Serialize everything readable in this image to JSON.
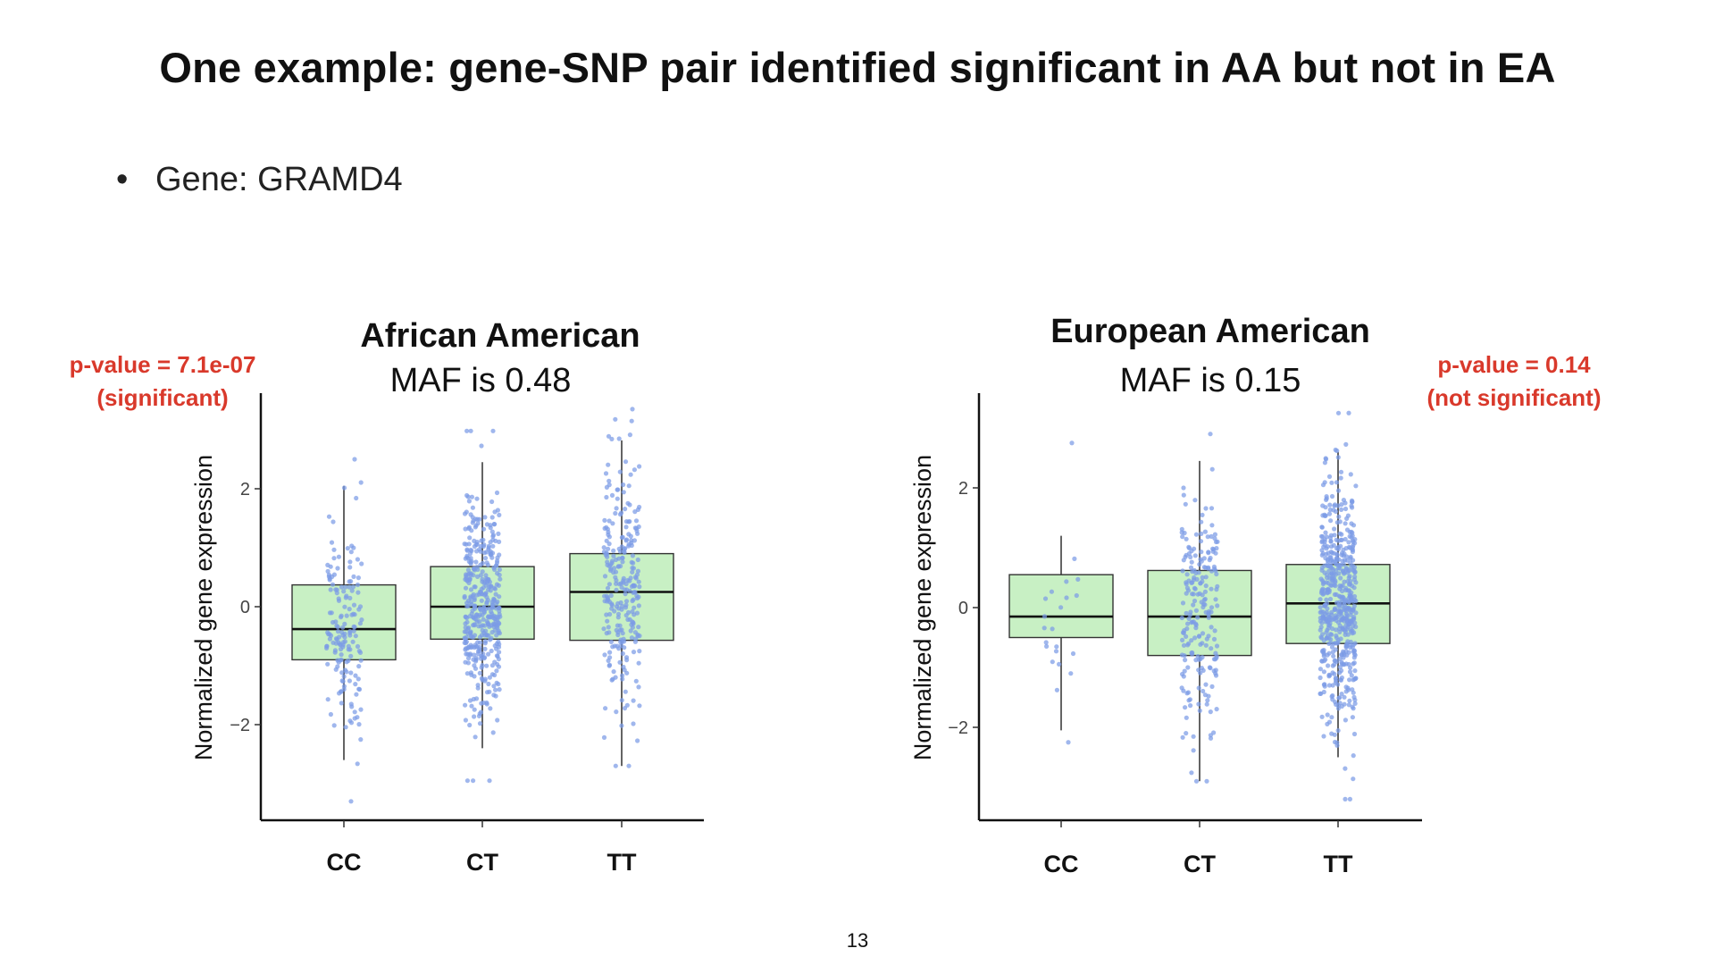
{
  "slide": {
    "title": "One example: gene-SNP pair identified significant in AA but not in EA",
    "bullet_marker": "•",
    "bullet": "Gene: GRAMD4",
    "page_number": "13"
  },
  "annotations": {
    "aa_pvalue": "p-value = 7.1e-07",
    "aa_note": "(significant)",
    "ea_pvalue": "p-value = 0.14",
    "ea_note": "(not significant)",
    "color": "#d9392b"
  },
  "chart_data": [
    {
      "type": "boxplot",
      "title": "African American",
      "subtitle": "MAF is 0.48",
      "ylabel": "Normalized gene expression",
      "xlabel": "",
      "ylim": [
        -3.6,
        3.6
      ],
      "yticks": [
        2,
        0,
        -2
      ],
      "ytick_labels": [
        "2",
        "0",
        "−2"
      ],
      "categories": [
        "CC",
        "CT",
        "TT"
      ],
      "box_fill": "#c8f0c4",
      "point_color": "#7b9be6",
      "boxes": [
        {
          "category": "CC",
          "whisker_low": -2.6,
          "q1": -0.9,
          "median": -0.38,
          "q3": 0.37,
          "whisker_high": 2.05,
          "n_points": 160,
          "min_point": -3.3,
          "max_point": 2.5
        },
        {
          "category": "CT",
          "whisker_low": -2.4,
          "q1": -0.55,
          "median": 0.0,
          "q3": 0.68,
          "whisker_high": 2.45,
          "n_points": 420,
          "min_point": -2.95,
          "max_point": 2.98
        },
        {
          "category": "TT",
          "whisker_low": -2.7,
          "q1": -0.57,
          "median": 0.25,
          "q3": 0.9,
          "whisker_high": 2.82,
          "n_points": 260,
          "min_point": -2.7,
          "max_point": 3.35
        }
      ]
    },
    {
      "type": "boxplot",
      "title": "European American",
      "subtitle": "MAF is 0.15",
      "ylabel": "Normalized gene expression",
      "xlabel": "",
      "ylim": [
        -3.6,
        3.6
      ],
      "yticks": [
        2,
        0,
        -2
      ],
      "ytick_labels": [
        "2",
        "0",
        "−2"
      ],
      "categories": [
        "CC",
        "CT",
        "TT"
      ],
      "box_fill": "#c8f0c4",
      "point_color": "#7b9be6",
      "boxes": [
        {
          "category": "CC",
          "whisker_low": -2.05,
          "q1": -0.5,
          "median": -0.15,
          "q3": 0.55,
          "whisker_high": 1.2,
          "n_points": 20,
          "min_point": -2.25,
          "max_point": 2.75
        },
        {
          "category": "CT",
          "whisker_low": -2.9,
          "q1": -0.8,
          "median": -0.15,
          "q3": 0.62,
          "whisker_high": 2.45,
          "n_points": 210,
          "min_point": -2.9,
          "max_point": 2.9
        },
        {
          "category": "TT",
          "whisker_low": -2.5,
          "q1": -0.6,
          "median": 0.07,
          "q3": 0.72,
          "whisker_high": 2.6,
          "n_points": 560,
          "min_point": -3.2,
          "max_point": 3.25
        }
      ]
    }
  ]
}
